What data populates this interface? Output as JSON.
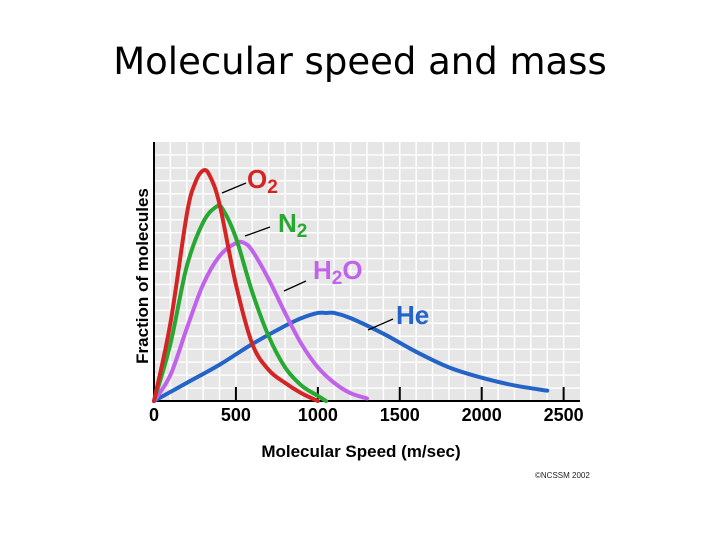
{
  "slide": {
    "title": "Molecular speed and mass",
    "copyright": "©NCSSM 2002"
  },
  "chart_data": {
    "type": "line",
    "title": "",
    "xlabel": "Molecular Speed (m/sec)",
    "ylabel": "Fraction of molecules",
    "xlim": [
      0,
      2600
    ],
    "ylim": [
      0,
      1.0
    ],
    "x_ticks": [
      0,
      500,
      1000,
      1500,
      2000,
      2500
    ],
    "x_tick_labels": [
      "0",
      "500",
      "1000",
      "1500",
      "2000",
      "2500"
    ],
    "grid": true,
    "legend": "inline labels near curve peaks",
    "series": [
      {
        "name": "O2",
        "label_main": "O",
        "label_sub": "2",
        "color": "#d42424",
        "x": [
          0,
          100,
          200,
          250,
          300,
          340,
          400,
          500,
          600,
          700,
          800,
          900,
          1000
        ],
        "y": [
          0,
          0.3,
          0.72,
          0.84,
          0.89,
          0.87,
          0.76,
          0.45,
          0.22,
          0.12,
          0.07,
          0.03,
          0.0
        ]
      },
      {
        "name": "N2",
        "label_main": "N",
        "label_sub": "2",
        "color": "#27a832",
        "x": [
          0,
          100,
          200,
          300,
          380,
          420,
          500,
          600,
          700,
          800,
          900,
          1000,
          1050
        ],
        "y": [
          0,
          0.22,
          0.52,
          0.69,
          0.75,
          0.74,
          0.63,
          0.42,
          0.25,
          0.13,
          0.06,
          0.02,
          0.0
        ]
      },
      {
        "name": "H2O",
        "label_main": "H",
        "label_sub": "2",
        "label_tail": "O",
        "color": "#c063ea",
        "x": [
          0,
          100,
          200,
          300,
          400,
          500,
          550,
          600,
          700,
          800,
          900,
          1000,
          1100,
          1200,
          1300
        ],
        "y": [
          0,
          0.1,
          0.28,
          0.45,
          0.56,
          0.61,
          0.61,
          0.58,
          0.47,
          0.34,
          0.22,
          0.13,
          0.07,
          0.03,
          0.01
        ]
      },
      {
        "name": "He",
        "label_main": "He",
        "label_sub": "",
        "color": "#2464c8",
        "x": [
          0,
          200,
          400,
          600,
          800,
          900,
          1000,
          1050,
          1100,
          1200,
          1400,
          1600,
          1800,
          2000,
          2200,
          2400
        ],
        "y": [
          0,
          0.07,
          0.14,
          0.22,
          0.29,
          0.32,
          0.34,
          0.34,
          0.34,
          0.32,
          0.26,
          0.19,
          0.13,
          0.09,
          0.06,
          0.04
        ]
      }
    ]
  }
}
